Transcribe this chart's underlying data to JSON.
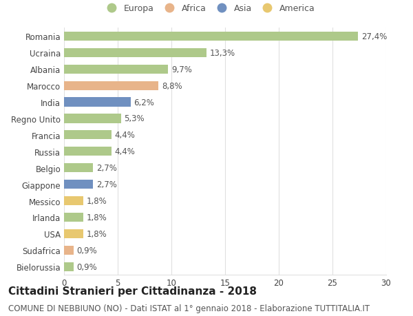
{
  "countries": [
    "Romania",
    "Ucraina",
    "Albania",
    "Marocco",
    "India",
    "Regno Unito",
    "Francia",
    "Russia",
    "Belgio",
    "Giappone",
    "Messico",
    "Irlanda",
    "USA",
    "Sudafrica",
    "Bielorussia"
  ],
  "values": [
    27.4,
    13.3,
    9.7,
    8.8,
    6.2,
    5.3,
    4.4,
    4.4,
    2.7,
    2.7,
    1.8,
    1.8,
    1.8,
    0.9,
    0.9
  ],
  "labels": [
    "27,4%",
    "13,3%",
    "9,7%",
    "8,8%",
    "6,2%",
    "5,3%",
    "4,4%",
    "4,4%",
    "2,7%",
    "2,7%",
    "1,8%",
    "1,8%",
    "1,8%",
    "0,9%",
    "0,9%"
  ],
  "colors": [
    "#aec98a",
    "#aec98a",
    "#aec98a",
    "#e8b48a",
    "#7090c0",
    "#aec98a",
    "#aec98a",
    "#aec98a",
    "#aec98a",
    "#7090c0",
    "#e8c870",
    "#aec98a",
    "#e8c870",
    "#e8b48a",
    "#aec98a"
  ],
  "legend_labels": [
    "Europa",
    "Africa",
    "Asia",
    "America"
  ],
  "legend_colors": [
    "#aec98a",
    "#e8b48a",
    "#7090c0",
    "#e8c870"
  ],
  "title": "Cittadini Stranieri per Cittadinanza - 2018",
  "subtitle": "COMUNE DI NEBBIUNO (NO) - Dati ISTAT al 1° gennaio 2018 - Elaborazione TUTTITALIA.IT",
  "xlim": [
    0,
    30
  ],
  "xticks": [
    0,
    5,
    10,
    15,
    20,
    25,
    30
  ],
  "bg_color": "#ffffff",
  "grid_color": "#e0e0e0",
  "bar_height": 0.55,
  "label_fontsize": 8.5,
  "tick_fontsize": 8.5,
  "title_fontsize": 11,
  "subtitle_fontsize": 8.5
}
